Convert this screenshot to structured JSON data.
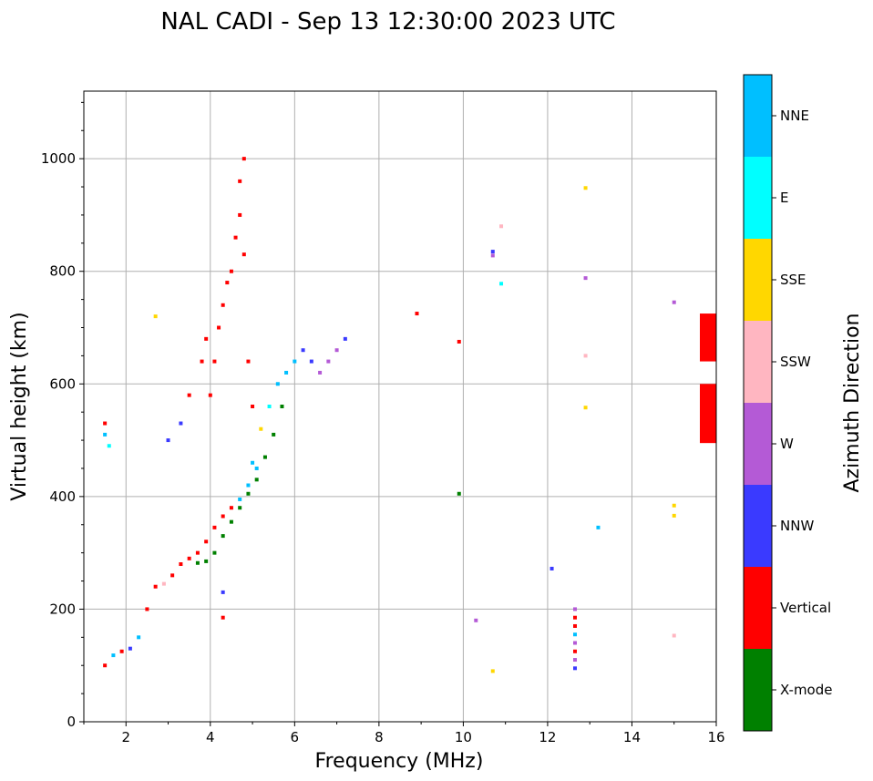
{
  "chart_data": {
    "type": "scatter",
    "title": "NAL CADI - Sep 13 12:30:00 2023 UTC",
    "xlabel": "Frequency (MHz)",
    "ylabel": "Virtual height (km)",
    "xlim": [
      1,
      16
    ],
    "ylim": [
      0,
      1120
    ],
    "xticks": [
      2,
      4,
      6,
      8,
      10,
      12,
      14,
      16
    ],
    "yticks": [
      0,
      200,
      400,
      600,
      800,
      1000
    ],
    "grid": true,
    "colorbar": {
      "label": "Azimuth Direction",
      "categories": [
        {
          "name": "X-mode",
          "color": "#008000"
        },
        {
          "name": "Vertical",
          "color": "#ff0000"
        },
        {
          "name": "NNW",
          "color": "#3a3aff"
        },
        {
          "name": "W",
          "color": "#b45ad6"
        },
        {
          "name": "SSW",
          "color": "#ffb6c1"
        },
        {
          "name": "SSE",
          "color": "#ffd700"
        },
        {
          "name": "E",
          "color": "#00ffff"
        },
        {
          "name": "NNE",
          "color": "#00bfff"
        }
      ]
    },
    "traces": [
      {
        "name": "low-freq O trace",
        "f": [
          1.5,
          1.7,
          1.9,
          2.1,
          2.3,
          2.5,
          2.7,
          2.9,
          3.1,
          3.3,
          3.5,
          3.7,
          3.9,
          4.1,
          4.3,
          4.5,
          4.7,
          4.9,
          5.1
        ],
        "h": [
          100,
          118,
          125,
          130,
          150,
          200,
          240,
          245,
          260,
          280,
          290,
          300,
          320,
          345,
          365,
          380,
          395,
          420,
          450
        ],
        "colors": [
          "#ff0000",
          "#00bfff",
          "#ff0000",
          "#3a3aff",
          "#00bfff",
          "#ff0000",
          "#ff0000",
          "#ffb6c1",
          "#ff0000",
          "#ff0000",
          "#ff0000",
          "#ff0000",
          "#ff0000",
          "#ff0000",
          "#ff0000",
          "#ff0000",
          "#00bfff",
          "#00bfff",
          "#00bfff"
        ]
      },
      {
        "name": "X-mode trace",
        "f": [
          3.7,
          3.9,
          4.1,
          4.3,
          4.5,
          4.7,
          4.9,
          5.1,
          5.3,
          5.5,
          5.7
        ],
        "h": [
          282,
          285,
          300,
          330,
          355,
          380,
          405,
          430,
          470,
          510,
          560
        ],
        "colors": [
          "#008000",
          "#008000",
          "#008000",
          "#008000",
          "#008000",
          "#008000",
          "#008000",
          "#008000",
          "#008000",
          "#008000",
          "#008000"
        ]
      },
      {
        "name": "vertical spread",
        "f": [
          4.0,
          4.1,
          4.2,
          4.3,
          4.4,
          4.5,
          4.6,
          4.7,
          4.7,
          4.8,
          4.8,
          4.9,
          5.0
        ],
        "h": [
          580,
          640,
          700,
          740,
          780,
          800,
          860,
          900,
          960,
          1000,
          830,
          640,
          560
        ],
        "colors": [
          "#ff0000",
          "#ff0000",
          "#ff0000",
          "#ff0000",
          "#ff0000",
          "#ff0000",
          "#ff0000",
          "#ff0000",
          "#ff0000",
          "#ff0000",
          "#ff0000",
          "#ff0000",
          "#ff0000"
        ]
      },
      {
        "name": "F-region spread",
        "f": [
          5.0,
          5.2,
          5.4,
          5.6,
          5.8,
          6.0,
          6.2,
          6.4,
          6.6,
          6.8,
          7.0,
          7.2
        ],
        "h": [
          460,
          520,
          560,
          600,
          620,
          640,
          660,
          640,
          620,
          640,
          660,
          680
        ],
        "colors": [
          "#00bfff",
          "#ffd700",
          "#00ffff",
          "#00bfff",
          "#00bfff",
          "#00bfff",
          "#3a3aff",
          "#3a3aff",
          "#b45ad6",
          "#b45ad6",
          "#b45ad6",
          "#3a3aff"
        ]
      },
      {
        "name": "12.6 MHz column",
        "f": [
          12.65,
          12.65,
          12.65,
          12.65,
          12.65,
          12.65,
          12.65,
          12.65
        ],
        "h": [
          95,
          110,
          125,
          140,
          155,
          170,
          185,
          200
        ],
        "colors": [
          "#3a3aff",
          "#b45ad6",
          "#ff0000",
          "#b45ad6",
          "#00bfff",
          "#ff0000",
          "#ff0000",
          "#b45ad6"
        ]
      },
      {
        "name": "scattered echoes",
        "f": [
          1.5,
          1.5,
          1.6,
          2.7,
          3.0,
          3.3,
          3.5,
          3.8,
          3.9,
          8.9,
          9.9,
          9.9,
          10.7,
          10.7,
          10.9,
          10.9,
          10.3,
          10.7,
          12.1,
          12.9,
          12.9,
          12.9,
          12.9,
          13.2,
          15.0,
          15.0,
          15.0,
          15.0,
          4.3,
          4.3
        ],
        "h": [
          530,
          510,
          490,
          720,
          500,
          530,
          580,
          640,
          680,
          725,
          675,
          405,
          835,
          828,
          880,
          778,
          180,
          90,
          272,
          948,
          788,
          650,
          558,
          345,
          745,
          384,
          366,
          153,
          230,
          185
        ],
        "colors": [
          "#ff0000",
          "#00bfff",
          "#00ffff",
          "#ffd700",
          "#3a3aff",
          "#3a3aff",
          "#ff0000",
          "#ff0000",
          "#ff0000",
          "#ff0000",
          "#ff0000",
          "#008000",
          "#3a3aff",
          "#b45ad6",
          "#ffb6c1",
          "#00ffff",
          "#b45ad6",
          "#ffd700",
          "#3a3aff",
          "#ffd700",
          "#b45ad6",
          "#ffb6c1",
          "#ffd700",
          "#00bfff",
          "#b45ad6",
          "#ffd700",
          "#ffd700",
          "#ffb6c1",
          "#3a3aff",
          "#ff0000"
        ]
      }
    ],
    "edge_bars": [
      {
        "h_from": 640,
        "h_to": 725,
        "color": "#ff0000"
      },
      {
        "h_from": 495,
        "h_to": 600,
        "color": "#ff0000"
      }
    ]
  }
}
